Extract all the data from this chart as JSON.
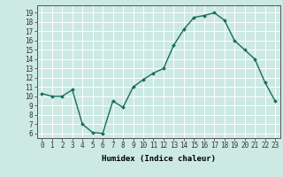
{
  "x": [
    0,
    1,
    2,
    3,
    4,
    5,
    6,
    7,
    8,
    9,
    10,
    11,
    12,
    13,
    14,
    15,
    16,
    17,
    18,
    19,
    20,
    21,
    22,
    23
  ],
  "y": [
    10.3,
    10.0,
    10.0,
    10.7,
    7.0,
    6.1,
    6.0,
    9.5,
    8.8,
    11.0,
    11.8,
    12.5,
    13.0,
    15.5,
    17.2,
    18.5,
    18.7,
    19.0,
    18.2,
    16.0,
    15.0,
    14.0,
    11.5,
    9.5
  ],
  "line_color": "#1a6b5e",
  "marker": "D",
  "marker_size": 2,
  "bg_color": "#cce9e4",
  "grid_color": "#ffffff",
  "xlabel": "Humidex (Indice chaleur)",
  "ylim": [
    5.5,
    19.8
  ],
  "xlim": [
    -0.5,
    23.5
  ],
  "yticks": [
    6,
    7,
    8,
    9,
    10,
    11,
    12,
    13,
    14,
    15,
    16,
    17,
    18,
    19
  ],
  "xticks": [
    0,
    1,
    2,
    3,
    4,
    5,
    6,
    7,
    8,
    9,
    10,
    11,
    12,
    13,
    14,
    15,
    16,
    17,
    18,
    19,
    20,
    21,
    22,
    23
  ],
  "xtick_labels": [
    "0",
    "1",
    "2",
    "3",
    "4",
    "5",
    "6",
    "7",
    "8",
    "9",
    "10",
    "11",
    "12",
    "13",
    "14",
    "15",
    "16",
    "17",
    "18",
    "19",
    "20",
    "21",
    "22",
    "23"
  ],
  "label_fontsize": 6.5,
  "tick_fontsize": 5.5,
  "line_width": 1.0
}
